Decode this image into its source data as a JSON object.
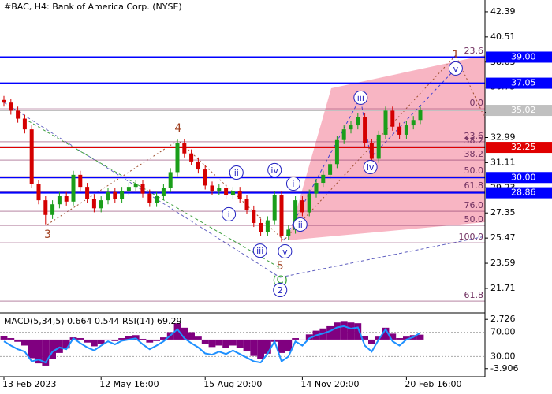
{
  "chart_data": [
    {
      "type": "candlestick",
      "title": "#BAC, H4:  Bank of America Corp. (NYSE)",
      "categories": [
        "13 Feb 2023",
        null,
        null,
        null,
        null,
        null,
        null,
        null,
        null,
        null,
        null,
        null,
        null,
        null,
        "12 May 16:00",
        null,
        null,
        null,
        null,
        null,
        null,
        null,
        null,
        null,
        null,
        null,
        null,
        null,
        null,
        "15 Aug 20:00",
        null,
        null,
        null,
        null,
        null,
        null,
        null,
        null,
        null,
        null,
        null,
        null,
        null,
        "14 Nov 20:00",
        null,
        null,
        null,
        null,
        null,
        null,
        null,
        null,
        null,
        null,
        null,
        null,
        null,
        null,
        "20 Feb 16:00",
        null,
        null
      ],
      "open": [
        35.8,
        35.6,
        35.0,
        34.4,
        33.6,
        29.5,
        28.3,
        27.2,
        28.0,
        28.6,
        28.2,
        30.2,
        29.3,
        28.4,
        27.7,
        28.3,
        28.9,
        28.4,
        29.0,
        29.3,
        29.5,
        28.8,
        28.1,
        28.6,
        29.2,
        30.4,
        32.6,
        31.8,
        31.2,
        30.6,
        29.4,
        29.0,
        29.2,
        28.7,
        29.0,
        28.4,
        27.6,
        26.6,
        25.9,
        26.8,
        28.7,
        25.6,
        26.1,
        28.3,
        27.4,
        28.8,
        29.6,
        30.2,
        31.0,
        32.8,
        33.6,
        33.9,
        34.5,
        32.6,
        31.4,
        33.2,
        35.0,
        33.8,
        33.2,
        33.9,
        34.3
      ],
      "high": [
        36.1,
        35.9,
        35.3,
        34.7,
        33.9,
        29.8,
        28.6,
        28.3,
        28.9,
        28.9,
        30.5,
        30.5,
        29.6,
        28.7,
        28.6,
        29.2,
        29.2,
        29.3,
        29.6,
        29.8,
        29.8,
        29.1,
        28.9,
        29.5,
        30.7,
        32.9,
        32.9,
        32.1,
        31.5,
        30.9,
        29.7,
        29.5,
        29.5,
        29.3,
        29.3,
        28.7,
        27.9,
        26.9,
        27.1,
        29.0,
        29.0,
        26.4,
        28.6,
        28.6,
        29.1,
        29.9,
        30.5,
        31.3,
        33.1,
        33.9,
        34.2,
        34.8,
        34.8,
        32.9,
        33.5,
        35.3,
        35.3,
        34.1,
        34.2,
        34.6,
        35.3
      ],
      "low": [
        35.3,
        34.7,
        34.1,
        33.3,
        29.2,
        28.0,
        26.5,
        26.9,
        27.7,
        27.9,
        27.9,
        29.0,
        28.1,
        27.4,
        27.4,
        28.0,
        28.1,
        28.1,
        28.7,
        29.0,
        28.5,
        27.8,
        27.8,
        28.3,
        28.9,
        30.1,
        31.5,
        30.9,
        30.3,
        29.1,
        28.7,
        28.7,
        28.4,
        28.4,
        28.1,
        27.3,
        26.3,
        25.6,
        25.6,
        26.5,
        25.2,
        25.3,
        25.8,
        27.1,
        27.1,
        28.5,
        29.3,
        29.9,
        30.7,
        32.5,
        33.3,
        33.6,
        32.3,
        31.1,
        31.1,
        32.9,
        33.5,
        32.9,
        32.9,
        33.6,
        34.0
      ],
      "close": [
        35.6,
        35.0,
        34.4,
        33.6,
        29.5,
        28.3,
        27.2,
        28.0,
        28.6,
        28.2,
        30.2,
        29.3,
        28.4,
        27.7,
        28.3,
        28.9,
        28.4,
        29.0,
        29.3,
        29.5,
        28.8,
        28.1,
        28.6,
        29.2,
        30.4,
        32.6,
        31.8,
        31.2,
        30.6,
        29.4,
        29.0,
        29.2,
        28.7,
        29.0,
        28.4,
        27.6,
        26.6,
        25.9,
        26.8,
        28.7,
        25.6,
        26.1,
        28.3,
        27.4,
        28.8,
        29.6,
        30.2,
        31.0,
        32.8,
        33.6,
        33.9,
        34.5,
        32.6,
        31.4,
        33.2,
        35.0,
        33.8,
        33.2,
        33.9,
        34.3,
        35.02
      ],
      "up_color": "#1a9e1a",
      "down_color": "#d40000",
      "ylim": [
        20,
        43.27
      ],
      "yticks": [
        42.39,
        40.51,
        38.63,
        36.75,
        34.87,
        32.99,
        31.11,
        29.23,
        27.35,
        25.47,
        23.59,
        21.71
      ],
      "levels": [
        {
          "value": 39,
          "label": "39.00",
          "color": "#0000ff"
        },
        {
          "value": 37.05,
          "label": "37.05",
          "color": "#0000ff"
        },
        {
          "value": 35.02,
          "label": "35.02",
          "color": "#c0c0c0"
        },
        {
          "value": 32.25,
          "label": "32.25",
          "color": "#e00000"
        },
        {
          "value": 30,
          "label": "30.00",
          "color": "#0000ff"
        },
        {
          "value": 28.86,
          "label": "28.86",
          "color": "#0000ff"
        }
      ],
      "fib_levels": [
        {
          "label": "23.6",
          "value": 39.03
        },
        {
          "label": "0.0",
          "value": 35.14
        },
        {
          "label": "23.6",
          "value": 32.67
        },
        {
          "label": "38.2",
          "value": 32.31
        },
        {
          "label": "38.2",
          "value": 31.31
        },
        {
          "label": "50.0",
          "value": 30.07
        },
        {
          "label": "61.8",
          "value": 28.95
        },
        {
          "label": "76.0",
          "value": 27.48
        },
        {
          "label": "50.0",
          "value": 26.42
        },
        {
          "label": "100.0",
          "value": 25.12
        },
        {
          "label": "61.8",
          "value": 20.76
        }
      ],
      "annotations": [
        {
          "text": "1",
          "x": 65.1,
          "y": 39.15,
          "style": "plain"
        },
        {
          "text": "v",
          "x": 65.1,
          "y": 38.15,
          "style": "circle"
        },
        {
          "text": "4",
          "x": 25.1,
          "y": 33.67,
          "style": "plain"
        },
        {
          "text": "3",
          "x": 6.3,
          "y": 25.71,
          "style": "plain"
        },
        {
          "text": "5",
          "x": 39.8,
          "y": 23.36,
          "style": "plain"
        },
        {
          "text": "(C)",
          "x": 39.8,
          "y": 22.3,
          "style": "green"
        },
        {
          "text": "2",
          "x": 39.8,
          "y": 21.59,
          "style": "circle"
        },
        {
          "text": "i",
          "x": 32.4,
          "y": 27.25,
          "style": "circle"
        },
        {
          "text": "ii",
          "x": 33.5,
          "y": 30.37,
          "style": "circle"
        },
        {
          "text": "iii",
          "x": 36.9,
          "y": 24.53,
          "style": "circle"
        },
        {
          "text": "iv",
          "x": 39,
          "y": 30.55,
          "style": "circle"
        },
        {
          "text": "v",
          "x": 40.5,
          "y": 24.48,
          "style": "circle"
        },
        {
          "text": "i",
          "x": 41.7,
          "y": 29.54,
          "style": "circle"
        },
        {
          "text": "ii",
          "x": 42.7,
          "y": 26.48,
          "style": "circle"
        },
        {
          "text": "iii",
          "x": 51.4,
          "y": 35.97,
          "style": "circle"
        },
        {
          "text": "iv",
          "x": 52.8,
          "y": 30.78,
          "style": "circle"
        }
      ]
    },
    {
      "type": "macd_rsi",
      "title": "MACD(5,34,5) 0.664 0.544 RSI(14) 69.29",
      "macd": [
        0.5,
        0.2,
        -0.3,
        -0.8,
        -2.5,
        -3.2,
        -3.5,
        -2.6,
        -1.8,
        -1.2,
        0.3,
        0.2,
        -0.4,
        -0.9,
        -0.6,
        -0.1,
        -0.2,
        0.2,
        0.5,
        0.6,
        0.1,
        -0.4,
        -0.2,
        0.3,
        1.0,
        2.2,
        1.6,
        1.0,
        0.4,
        -0.6,
        -1.0,
        -0.8,
        -1.1,
        -0.8,
        -1.1,
        -1.6,
        -2.2,
        -2.6,
        -1.9,
        -0.3,
        -1.8,
        -1.6,
        0.2,
        0.0,
        0.7,
        1.2,
        1.5,
        1.8,
        2.3,
        2.5,
        2.3,
        2.2,
        0.5,
        -0.6,
        0.4,
        1.6,
        0.8,
        0.2,
        0.4,
        0.6,
        0.664
      ],
      "macd_color": "#800080",
      "rsi": [
        55,
        48,
        42,
        38,
        22,
        25,
        20,
        38,
        45,
        42,
        60,
        52,
        45,
        40,
        48,
        55,
        50,
        56,
        58,
        60,
        50,
        42,
        48,
        55,
        65,
        75,
        60,
        52,
        45,
        35,
        33,
        38,
        34,
        40,
        34,
        28,
        22,
        20,
        35,
        55,
        22,
        30,
        55,
        48,
        60,
        65,
        68,
        72,
        78,
        80,
        76,
        78,
        48,
        38,
        58,
        75,
        55,
        48,
        58,
        62,
        69.29
      ],
      "rsi_color": "#1e90ff",
      "ylim": [
        -4.99,
        3.49
      ],
      "yticks": [
        2.726,
        -3.906
      ],
      "y2lim": [
        -3.3,
        100.7
      ],
      "y2ticks": [
        {
          "value": 70,
          "label": "70.00"
        },
        {
          "value": 30,
          "label": "30.00"
        }
      ]
    }
  ]
}
